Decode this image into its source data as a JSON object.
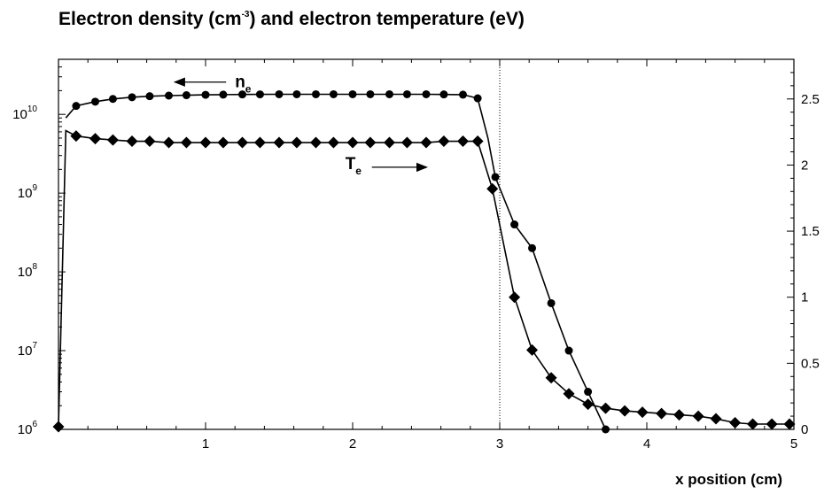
{
  "chart_data": {
    "type": "line",
    "title": {
      "pre": "Electron density (cm",
      "sup": "-3",
      "post": ") and electron temperature (eV)"
    },
    "xlabel": "x position (cm)",
    "xlim": [
      0,
      5
    ],
    "x_ticks": [
      1,
      2,
      3,
      4,
      5
    ],
    "x_tick_labels": [
      "1",
      "2",
      "3",
      "4",
      "5"
    ],
    "y_left": {
      "scale": "log",
      "range": [
        1000000,
        50000000000
      ],
      "ticks": [
        {
          "value": 1000000,
          "base": "10",
          "exp": "6"
        },
        {
          "value": 10000000,
          "base": "10",
          "exp": "7"
        },
        {
          "value": 100000000,
          "base": "10",
          "exp": "8"
        },
        {
          "value": 1000000000,
          "base": "10",
          "exp": "9"
        },
        {
          "value": 10000000000,
          "base": "10",
          "exp": "10"
        }
      ]
    },
    "y_right": {
      "scale": "linear",
      "range": [
        0,
        2.8
      ],
      "ticks": [
        0,
        0.5,
        1,
        1.5,
        2,
        2.5
      ],
      "tick_labels": [
        "0",
        "0.5",
        "1",
        "1.5",
        "2",
        "2.5"
      ]
    },
    "reference_line_x": 3,
    "grid": false,
    "legend": "none",
    "series": [
      {
        "axis": "left",
        "marker": "circle",
        "color": "#000000",
        "x": [
          0.05,
          0.12,
          0.25,
          0.37,
          0.5,
          0.62,
          0.75,
          0.87,
          1.0,
          1.12,
          1.25,
          1.37,
          1.5,
          1.62,
          1.75,
          1.87,
          2.0,
          2.12,
          2.25,
          2.37,
          2.5,
          2.62,
          2.75,
          2.85,
          2.92,
          2.97,
          3.1,
          3.22,
          3.35,
          3.47,
          3.6,
          3.72
        ],
        "y": [
          9000000000,
          12800000000,
          14500000000,
          15700000000,
          16500000000,
          17000000000,
          17300000000,
          17500000000,
          17700000000,
          17800000000,
          17900000000,
          17950000000,
          18000000000,
          18000000000,
          18000000000,
          18000000000,
          18000000000,
          18000000000,
          18000000000,
          18000000000,
          18000000000,
          17900000000,
          17800000000,
          16000000000,
          5000000000,
          1600000000,
          400000000,
          200000000,
          40000000,
          10000000,
          3000000,
          1000000
        ],
        "marker_x": [
          0.12,
          0.25,
          0.37,
          0.5,
          0.62,
          0.75,
          0.87,
          1.0,
          1.12,
          1.25,
          1.37,
          1.5,
          1.62,
          1.75,
          1.87,
          2.0,
          2.12,
          2.25,
          2.37,
          2.5,
          2.62,
          2.75,
          2.85,
          2.97,
          3.1,
          3.22,
          3.35,
          3.47,
          3.6,
          3.72
        ],
        "marker_y": [
          12800000000,
          14500000000,
          15700000000,
          16500000000,
          17000000000,
          17300000000,
          17500000000,
          17700000000,
          17800000000,
          17900000000,
          17950000000,
          18000000000,
          18000000000,
          18000000000,
          18000000000,
          18000000000,
          18000000000,
          18000000000,
          18000000000,
          18000000000,
          17900000000,
          17800000000,
          16000000000,
          1600000000,
          400000000,
          200000000,
          40000000,
          10000000,
          3000000,
          1000000
        ],
        "label": {
          "main": "n",
          "sub": "e",
          "x": 1.2,
          "y": 22000000000,
          "arrow": "left"
        }
      },
      {
        "axis": "right",
        "marker": "diamond",
        "color": "#000000",
        "x": [
          0.0,
          0.05,
          0.12,
          0.25,
          0.37,
          0.5,
          0.62,
          0.75,
          0.87,
          1.0,
          1.12,
          1.25,
          1.37,
          1.5,
          1.62,
          1.75,
          1.87,
          2.0,
          2.12,
          2.25,
          2.37,
          2.5,
          2.62,
          2.75,
          2.85,
          2.95,
          3.1,
          3.22,
          3.35,
          3.47,
          3.6,
          3.72,
          3.85,
          3.97,
          4.1,
          4.22,
          4.35,
          4.47,
          4.6,
          4.72,
          4.85,
          4.97
        ],
        "y": [
          0.02,
          2.26,
          2.22,
          2.2,
          2.19,
          2.18,
          2.18,
          2.17,
          2.17,
          2.17,
          2.17,
          2.17,
          2.17,
          2.17,
          2.17,
          2.17,
          2.17,
          2.17,
          2.17,
          2.17,
          2.17,
          2.17,
          2.18,
          2.18,
          2.18,
          1.82,
          1.0,
          0.6,
          0.39,
          0.27,
          0.19,
          0.16,
          0.14,
          0.13,
          0.12,
          0.11,
          0.1,
          0.08,
          0.05,
          0.04,
          0.04,
          0.04
        ],
        "marker_x": [
          0.0,
          0.12,
          0.25,
          0.37,
          0.5,
          0.62,
          0.75,
          0.87,
          1.0,
          1.12,
          1.25,
          1.37,
          1.5,
          1.62,
          1.75,
          1.87,
          2.0,
          2.12,
          2.25,
          2.37,
          2.5,
          2.62,
          2.75,
          2.85,
          2.95,
          3.1,
          3.22,
          3.35,
          3.47,
          3.6,
          3.72,
          3.85,
          3.97,
          4.1,
          4.22,
          4.35,
          4.47,
          4.6,
          4.72,
          4.85,
          4.97
        ],
        "marker_y": [
          0.02,
          2.22,
          2.2,
          2.19,
          2.18,
          2.18,
          2.17,
          2.17,
          2.17,
          2.17,
          2.17,
          2.17,
          2.17,
          2.17,
          2.17,
          2.17,
          2.17,
          2.17,
          2.17,
          2.17,
          2.17,
          2.18,
          2.18,
          2.18,
          1.82,
          1.0,
          0.6,
          0.39,
          0.27,
          0.19,
          0.16,
          0.14,
          0.13,
          0.12,
          0.11,
          0.1,
          0.08,
          0.05,
          0.04,
          0.04,
          0.04
        ],
        "label": {
          "main": "T",
          "sub": "e",
          "x": 1.95,
          "y": 1.97,
          "arrow": "right"
        }
      }
    ]
  }
}
